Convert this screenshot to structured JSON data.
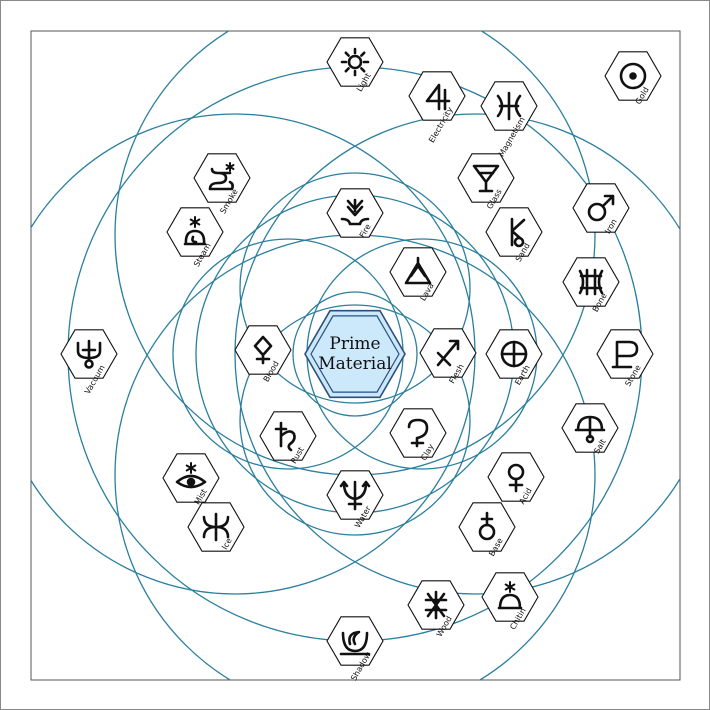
{
  "diagram": {
    "colors": {
      "ring": "#2a7f9e",
      "hex_fill": "#ffffff",
      "hex_stroke": "#111111",
      "center_fill": "#cce8fb",
      "center_stroke": "#2a4f7e",
      "frame": "#555555"
    },
    "center": {
      "line1": "Prime",
      "line2": "Material"
    },
    "nodes": [
      {
        "id": "light",
        "label": "Light",
        "icon": "light-icon"
      },
      {
        "id": "electricity",
        "label": "Electricity",
        "icon": "electricity-icon"
      },
      {
        "id": "magnetism",
        "label": "Magnetism",
        "icon": "magnetism-icon"
      },
      {
        "id": "gold",
        "label": "Gold",
        "icon": "gold-icon"
      },
      {
        "id": "smoke",
        "label": "Smoke",
        "icon": "smoke-icon"
      },
      {
        "id": "glass",
        "label": "Glass",
        "icon": "glass-icon"
      },
      {
        "id": "iron",
        "label": "Iron",
        "icon": "iron-icon"
      },
      {
        "id": "steam",
        "label": "Steam",
        "icon": "steam-icon"
      },
      {
        "id": "fire",
        "label": "Fire",
        "icon": "fire-icon"
      },
      {
        "id": "sand",
        "label": "Sand",
        "icon": "sand-icon"
      },
      {
        "id": "lava",
        "label": "Lava",
        "icon": "lava-icon"
      },
      {
        "id": "bone",
        "label": "Bone",
        "icon": "bone-icon"
      },
      {
        "id": "vacuum",
        "label": "Vacuum",
        "icon": "vacuum-icon"
      },
      {
        "id": "blood",
        "label": "Blood",
        "icon": "blood-icon"
      },
      {
        "id": "flesh",
        "label": "Flesh",
        "icon": "flesh-icon"
      },
      {
        "id": "earth",
        "label": "Earth",
        "icon": "earth-icon"
      },
      {
        "id": "stone",
        "label": "Stone",
        "icon": "stone-icon"
      },
      {
        "id": "salt",
        "label": "Salt",
        "icon": "salt-icon"
      },
      {
        "id": "rust",
        "label": "Rust",
        "icon": "rust-icon"
      },
      {
        "id": "clay",
        "label": "Clay",
        "icon": "clay-icon"
      },
      {
        "id": "mist",
        "label": "Mist",
        "icon": "mist-icon"
      },
      {
        "id": "acid",
        "label": "Acid",
        "icon": "acid-icon"
      },
      {
        "id": "water",
        "label": "Water",
        "icon": "water-icon"
      },
      {
        "id": "ice",
        "label": "Ice",
        "icon": "ice-icon"
      },
      {
        "id": "base",
        "label": "Base",
        "icon": "base-icon"
      },
      {
        "id": "chitin",
        "label": "Chitin",
        "icon": "chitin-icon"
      },
      {
        "id": "wood",
        "label": "Wood",
        "icon": "wood-icon"
      },
      {
        "id": "shadow",
        "label": "Shadow",
        "icon": "shadow-icon"
      }
    ]
  }
}
